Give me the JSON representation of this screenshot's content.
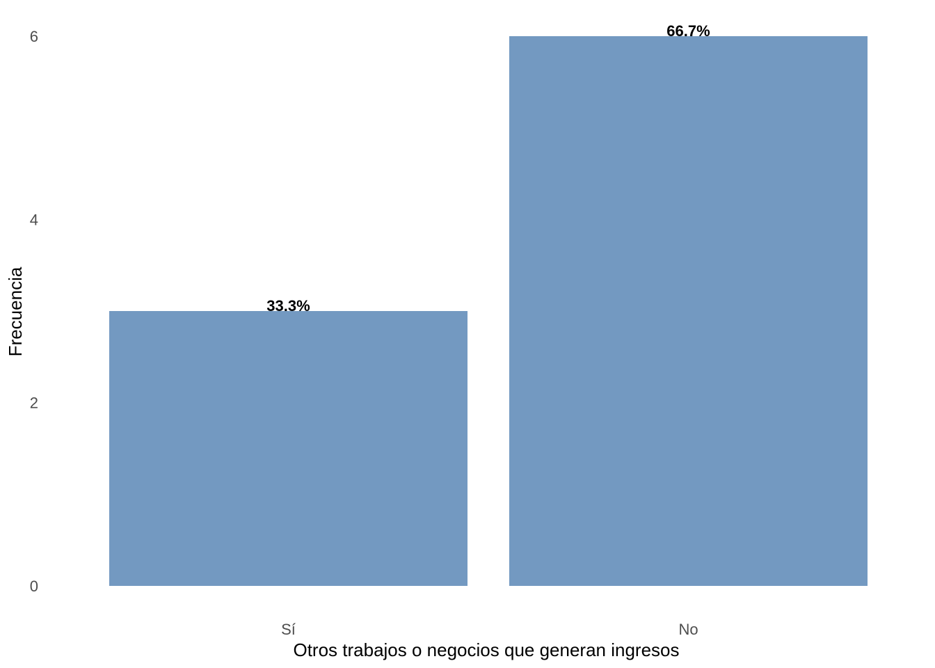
{
  "chart_data": {
    "type": "bar",
    "categories": [
      "Sí",
      "No"
    ],
    "values": [
      3,
      6
    ],
    "data_labels": [
      "33.3%",
      "66.7%"
    ],
    "xlabel": "Otros trabajos o negocios que generan ingresos",
    "ylabel": "Frecuencia",
    "yticks": [
      0,
      2,
      4,
      6
    ],
    "ylim": [
      0,
      6
    ],
    "grid": false,
    "legend": "none",
    "colors": {
      "bar": "#7399C1",
      "tick_text": "#4d4d4d",
      "label_text": "#000000"
    }
  }
}
